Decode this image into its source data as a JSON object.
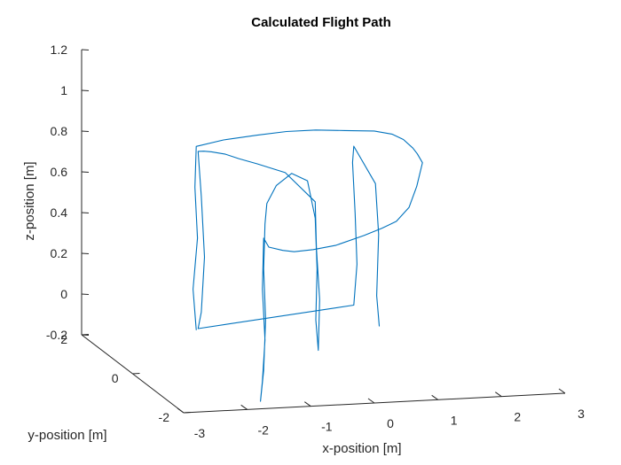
{
  "chart_data": {
    "type": "line",
    "title": "Calculated Flight Path",
    "xlabel": "x-position [m]",
    "ylabel": "y-position [m]",
    "zlabel": "z-position [m]",
    "xlim": [
      -3,
      3
    ],
    "ylim": [
      -2,
      2
    ],
    "zlim": [
      -0.2,
      1.2
    ],
    "x_ticks": [
      "-3",
      "-2",
      "-1",
      "0",
      "1",
      "2",
      "3"
    ],
    "y_ticks": [
      "-2",
      "0",
      "2"
    ],
    "z_ticks": [
      "-0.2",
      "0",
      "0.2",
      "0.4",
      "0.6",
      "0.8",
      "1",
      "1.2"
    ],
    "grid": false,
    "line_color": "#0072BD",
    "series": [
      {
        "points": [
          [
            -2.0,
            0.0,
            0.0
          ],
          [
            -2.05,
            0.0,
            0.2
          ],
          [
            -1.98,
            0.0,
            0.45
          ],
          [
            -2.02,
            0.0,
            0.7
          ],
          [
            -2.0,
            0.0,
            0.9
          ],
          [
            -1.55,
            0.05,
            0.92
          ],
          [
            -1.0,
            0.1,
            0.93
          ],
          [
            -0.5,
            0.2,
            0.93
          ],
          [
            0.0,
            0.3,
            0.92
          ],
          [
            0.5,
            0.4,
            0.9
          ],
          [
            1.0,
            0.5,
            0.88
          ],
          [
            1.4,
            0.8,
            0.83
          ],
          [
            1.7,
            1.1,
            0.77
          ],
          [
            1.95,
            1.35,
            0.7
          ],
          [
            2.1,
            1.55,
            0.65
          ],
          [
            2.2,
            1.6,
            0.6
          ],
          [
            2.05,
            1.45,
            0.5
          ],
          [
            1.85,
            1.25,
            0.42
          ],
          [
            1.55,
            1.0,
            0.38
          ],
          [
            1.2,
            0.7,
            0.38
          ],
          [
            0.8,
            0.4,
            0.38
          ],
          [
            0.2,
            0.0,
            0.38
          ],
          [
            -0.3,
            -0.35,
            0.4
          ],
          [
            -0.7,
            -0.6,
            0.42
          ],
          [
            -1.0,
            -0.9,
            0.46
          ],
          [
            -1.3,
            -1.1,
            0.5
          ],
          [
            -1.4,
            -1.15,
            0.55
          ],
          [
            -1.42,
            -1.15,
            0.3
          ],
          [
            -1.38,
            -1.15,
            0.05
          ],
          [
            -1.42,
            -1.15,
            -0.15
          ],
          [
            -1.45,
            -1.15,
            -0.25
          ],
          [
            -1.4,
            -1.15,
            -0.1
          ],
          [
            -1.37,
            -1.15,
            0.15
          ],
          [
            -1.4,
            -1.15,
            0.4
          ],
          [
            -1.38,
            -1.15,
            0.62
          ],
          [
            -1.35,
            -1.15,
            0.72
          ],
          [
            -1.1,
            -0.9,
            0.78
          ],
          [
            -0.8,
            -0.75,
            0.82
          ],
          [
            -0.55,
            -0.75,
            0.78
          ],
          [
            -0.45,
            -0.8,
            0.6
          ],
          [
            -0.42,
            -0.8,
            0.35
          ],
          [
            -0.44,
            -0.8,
            0.1
          ],
          [
            -0.4,
            -0.8,
            -0.05
          ],
          [
            -0.38,
            -0.8,
            0.2
          ],
          [
            -0.43,
            -0.8,
            0.45
          ],
          [
            -0.45,
            -0.8,
            0.68
          ],
          [
            -0.8,
            -0.5,
            0.8
          ],
          [
            -1.2,
            -0.4,
            0.84
          ],
          [
            -1.45,
            -0.3,
            0.86
          ],
          [
            -1.6,
            -0.15,
            0.87
          ],
          [
            -1.8,
            -0.1,
            0.88
          ],
          [
            -1.9,
            -0.05,
            0.88
          ],
          [
            -1.95,
            0.05,
            0.87
          ],
          [
            -1.9,
            0.05,
            0.65
          ],
          [
            -1.85,
            0.05,
            0.35
          ],
          [
            -1.9,
            0.05,
            0.08
          ],
          [
            -1.95,
            0.05,
            0.0
          ],
          [
            0.8,
            0.8,
            0.0
          ],
          [
            0.85,
            0.8,
            0.2
          ],
          [
            0.82,
            0.8,
            0.45
          ],
          [
            0.78,
            0.8,
            0.7
          ],
          [
            0.8,
            0.8,
            0.78
          ],
          [
            1.3,
            1.2,
            0.55
          ],
          [
            1.35,
            1.2,
            0.3
          ],
          [
            1.32,
            1.2,
            0.0
          ],
          [
            1.36,
            1.2,
            -0.15
          ]
        ]
      }
    ]
  }
}
